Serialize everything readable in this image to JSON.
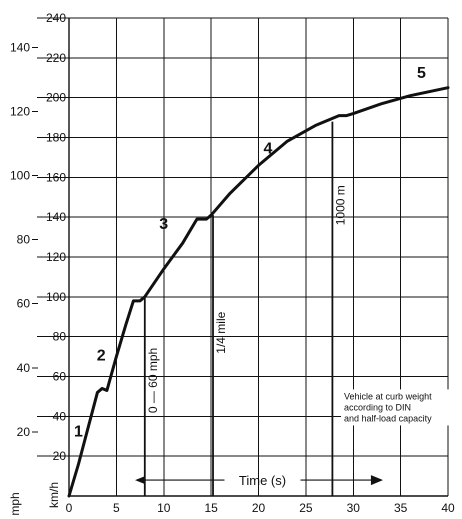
{
  "chart_data": {
    "type": "line",
    "title": "",
    "xlabel": "Time (s)",
    "ylabel_left_outer": "mph",
    "ylabel_left_inner": "km/h",
    "x_ticks": [
      0,
      5,
      10,
      15,
      20,
      25,
      30,
      35,
      40
    ],
    "kmh_ticks": [
      20,
      40,
      60,
      80,
      100,
      120,
      140,
      160,
      180,
      200,
      220,
      240
    ],
    "mph_ticks": [
      20,
      40,
      60,
      80,
      100,
      120,
      140
    ],
    "xlim": [
      0,
      40
    ],
    "ylim_kmh": [
      0,
      240
    ],
    "grid": true,
    "series": [
      {
        "name": "",
        "x": [
          0,
          1,
          2,
          3,
          3.5,
          4,
          5,
          6,
          6.8,
          7.5,
          8,
          10,
          12,
          13.5,
          14.5,
          15,
          17,
          20,
          23,
          26,
          28.5,
          29.3,
          30,
          33,
          36,
          40
        ],
        "y": [
          0,
          16,
          34,
          52,
          54,
          53,
          70,
          86,
          98,
          98,
          100,
          114,
          127,
          139,
          139,
          141,
          152,
          166,
          178,
          186,
          191,
          191,
          192,
          197,
          201,
          205
        ]
      }
    ],
    "gear_labels": [
      {
        "text": "1",
        "x": 1.0,
        "y": 30
      },
      {
        "text": "2",
        "x": 3.4,
        "y": 68
      },
      {
        "text": "3",
        "x": 10.0,
        "y": 134
      },
      {
        "text": "4",
        "x": 21.0,
        "y": 172
      },
      {
        "text": "5",
        "x": 37.2,
        "y": 210
      }
    ],
    "markers": [
      {
        "label": "0 — 60 mph",
        "x": 8.0,
        "y_top": 100
      },
      {
        "label": "1/4 mile",
        "x": 15.2,
        "y_top": 141
      },
      {
        "label": "1000 m",
        "x": 27.8,
        "y_top": 188
      }
    ],
    "time_arrow": {
      "label": "Time (s)",
      "x_start": 7.5,
      "x_end": 32.5,
      "y": 8
    },
    "annotation_lines": [
      "Vehicle at curb weight",
      "according to DIN",
      "and half-load capacity"
    ]
  }
}
